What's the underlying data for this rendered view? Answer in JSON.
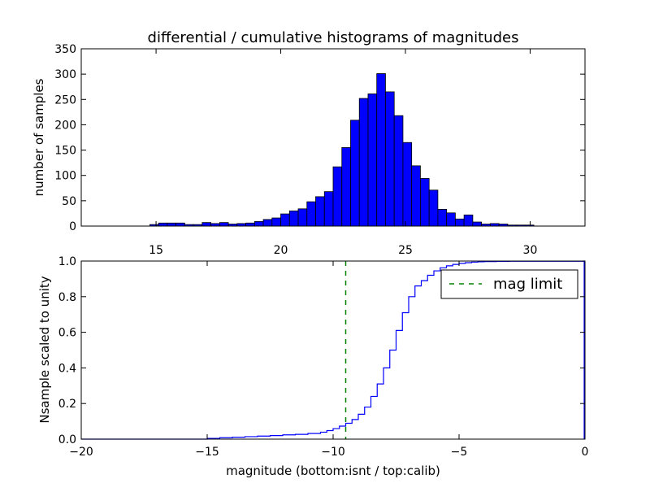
{
  "chart_data": [
    {
      "type": "bar",
      "title": "differential / cumulative histograms of magnitudes",
      "xlabel": "",
      "ylabel": "number of samples",
      "xlim": [
        12.0,
        32.2
      ],
      "ylim": [
        0,
        350
      ],
      "xticks": [
        15,
        20,
        25,
        30
      ],
      "yticks": [
        0,
        50,
        100,
        150,
        200,
        250,
        300,
        350
      ],
      "bar_color": "#0000ff",
      "bin_edges": [
        14.75,
        15.1,
        15.45,
        15.8,
        16.15,
        16.5,
        16.85,
        17.2,
        17.55,
        17.9,
        18.25,
        18.6,
        18.95,
        19.3,
        19.65,
        20.0,
        20.35,
        20.7,
        21.05,
        21.4,
        21.75,
        22.1,
        22.45,
        22.8,
        23.15,
        23.5,
        23.85,
        24.2,
        24.55,
        24.9,
        25.25,
        25.6,
        25.95,
        26.3,
        26.65,
        27.0,
        27.35,
        27.7,
        28.05,
        28.4,
        28.75,
        29.1,
        29.45,
        29.8,
        30.15
      ],
      "values": [
        3,
        6,
        6,
        6,
        3,
        3,
        7,
        5,
        7,
        4,
        5,
        6,
        9,
        13,
        16,
        24,
        30,
        34,
        48,
        58,
        68,
        117,
        155,
        209,
        252,
        261,
        301,
        265,
        218,
        165,
        119,
        94,
        71,
        33,
        26,
        14,
        22,
        8,
        4,
        5,
        4,
        2,
        2,
        2
      ]
    },
    {
      "type": "line",
      "xlabel": "magnitude (bottom:isnt / top:calib)",
      "ylabel": "Nsample scaled to unity",
      "xlim": [
        -20,
        0
      ],
      "ylim": [
        0.0,
        1.0
      ],
      "xticks": [
        -20,
        -15,
        -10,
        -5,
        0
      ],
      "xtick_labels": [
        "−20",
        "−15",
        "−10",
        "−5",
        "0"
      ],
      "yticks": [
        0.0,
        0.2,
        0.4,
        0.6,
        0.8,
        1.0
      ],
      "ytick_labels": [
        "0.0",
        "0.2",
        "0.4",
        "0.6",
        "0.8",
        "1.0"
      ],
      "grid": false,
      "series": [
        {
          "style": "step",
          "color": "#0000ff",
          "x": [
            -20.0,
            -15.0,
            -14.5,
            -14.0,
            -13.5,
            -13.0,
            -12.5,
            -12.0,
            -11.5,
            -11.0,
            -10.5,
            -10.25,
            -10.0,
            -9.75,
            -9.5,
            -9.25,
            -9.0,
            -8.75,
            -8.5,
            -8.25,
            -8.0,
            -7.75,
            -7.5,
            -7.25,
            -7.0,
            -6.75,
            -6.5,
            -6.25,
            -6.0,
            -5.75,
            -5.5,
            -5.25,
            -5.0,
            -4.75,
            -4.5,
            -4.25,
            -4.0,
            -3.5,
            -3.0,
            -2.5,
            -2.0,
            -1.5,
            -1.0,
            -0.5,
            -0.05
          ],
          "y": [
            0.0,
            0.004,
            0.008,
            0.011,
            0.014,
            0.017,
            0.02,
            0.024,
            0.027,
            0.032,
            0.039,
            0.048,
            0.059,
            0.073,
            0.089,
            0.11,
            0.14,
            0.18,
            0.24,
            0.31,
            0.4,
            0.5,
            0.61,
            0.71,
            0.8,
            0.86,
            0.89,
            0.92,
            0.945,
            0.962,
            0.973,
            0.981,
            0.987,
            0.991,
            0.994,
            0.996,
            0.997,
            0.998,
            0.999,
            0.999,
            0.999,
            0.999,
            0.999,
            0.999,
            1.0
          ]
        },
        {
          "name": "mag limit",
          "style": "dashed-vertical",
          "color": "#008000",
          "x_value": -9.5
        }
      ],
      "legend": {
        "placement": "upper right",
        "label": "mag limit"
      }
    }
  ]
}
